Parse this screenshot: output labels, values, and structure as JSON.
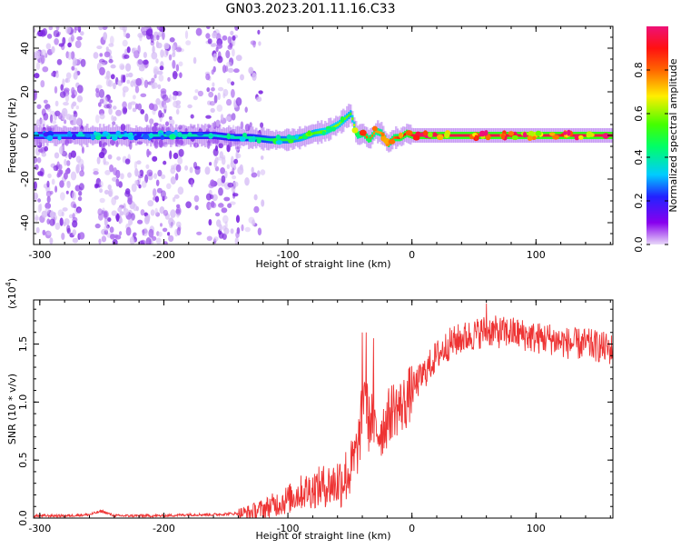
{
  "title": "GN03.2023.201.11.16.C33",
  "chart_data": [
    {
      "type": "heatmap",
      "xlabel": "Height of straight line (km)",
      "ylabel": "Frequency (Hz)",
      "xlim": [
        -305,
        162
      ],
      "ylim": [
        -50,
        50
      ],
      "x_ticks": [
        -300,
        -200,
        -100,
        0,
        100
      ],
      "x_tick_labels": [
        "-300",
        "-200",
        "-100",
        "0",
        "100"
      ],
      "y_ticks": [
        -40,
        -20,
        0,
        20,
        40
      ],
      "y_tick_labels": [
        "-40",
        "-20",
        "0",
        "20",
        "40"
      ],
      "colorbar": {
        "label": "Normalized spectral amplitude",
        "range": [
          0,
          1
        ],
        "ticks": [
          0.0,
          0.2,
          0.4,
          0.6,
          0.8
        ],
        "tick_labels": [
          "0.0",
          "0.2",
          "0.4",
          "0.6",
          "0.8"
        ]
      },
      "ridge": {
        "x": [
          -305,
          -280,
          -260,
          -240,
          -220,
          -200,
          -180,
          -160,
          -145,
          -130,
          -115,
          -100,
          -90,
          -80,
          -70,
          -60,
          -50,
          -45,
          -40,
          -35,
          -30,
          -25,
          -20,
          -15,
          -10,
          -5,
          0,
          20,
          50,
          100,
          162
        ],
        "y": [
          0,
          0,
          0,
          0,
          0,
          0,
          0,
          0,
          -1,
          -1,
          -2,
          -2,
          -1,
          1,
          2,
          5,
          10,
          0,
          1,
          -2,
          2,
          1,
          -4,
          -1,
          -1,
          1,
          0,
          0,
          0,
          0,
          0
        ],
        "amplitude": [
          0.3,
          0.3,
          0.4,
          0.35,
          0.35,
          0.4,
          0.4,
          0.35,
          0.4,
          0.4,
          0.45,
          0.5,
          0.55,
          0.55,
          0.6,
          0.6,
          0.55,
          0.7,
          0.8,
          0.8,
          0.75,
          0.75,
          0.8,
          0.8,
          0.9,
          0.9,
          0.95,
          0.95,
          0.95,
          0.95,
          0.95
        ]
      },
      "noise_bands": [
        {
          "x_range": [
            -305,
            -265
          ],
          "density": 0.9
        },
        {
          "x_range": [
            -255,
            -185
          ],
          "density": 0.85
        },
        {
          "x_range": [
            -182,
            -170
          ],
          "density": 0.3
        },
        {
          "x_range": [
            -165,
            -140
          ],
          "density": 0.95
        },
        {
          "x_range": [
            -140,
            -120
          ],
          "density": 0.3
        }
      ]
    },
    {
      "type": "line",
      "xlabel": "Height of straight line (km)",
      "ylabel": "SNR (10 * v/v)",
      "y_scale_label": "(x10",
      "y_scale_exponent": "4",
      "y_scale_suffix": ")",
      "xlim": [
        -305,
        162
      ],
      "ylim": [
        0,
        1.88
      ],
      "x_ticks": [
        -300,
        -200,
        -100,
        0,
        100
      ],
      "x_tick_labels": [
        "-300",
        "-200",
        "-100",
        "0",
        "100"
      ],
      "y_ticks": [
        0.0,
        0.5,
        1.0,
        1.5
      ],
      "y_tick_labels": [
        "0.0",
        "0.5",
        "1.0",
        "1.5"
      ],
      "color": "#ee3333",
      "series": [
        {
          "x": [
            -305,
            -280,
            -260,
            -250,
            -240,
            -220,
            -200,
            -180,
            -160,
            -140,
            -130,
            -120,
            -110,
            -100,
            -90,
            -80,
            -70,
            -60,
            -50,
            -45,
            -42,
            -40,
            -38,
            -35,
            -32,
            -30,
            -25,
            -20,
            -15,
            -10,
            -5,
            0,
            10,
            20,
            30,
            40,
            50,
            60,
            70,
            80,
            90,
            100,
            110,
            120,
            130,
            140,
            150,
            162
          ],
          "y": [
            0.02,
            0.02,
            0.03,
            0.06,
            0.02,
            0.02,
            0.02,
            0.03,
            0.03,
            0.04,
            0.05,
            0.08,
            0.12,
            0.16,
            0.22,
            0.25,
            0.28,
            0.3,
            0.4,
            0.55,
            0.7,
            0.95,
            1.2,
            0.8,
            0.9,
            0.75,
            0.75,
            0.85,
            0.95,
            0.95,
            1.0,
            1.1,
            1.25,
            1.4,
            1.5,
            1.55,
            1.58,
            1.62,
            1.6,
            1.6,
            1.58,
            1.55,
            1.55,
            1.52,
            1.5,
            1.5,
            1.48,
            1.45
          ],
          "spikes": [
            {
              "x": -40,
              "y": 1.6
            },
            {
              "x": -37,
              "y": 1.6
            },
            {
              "x": -31,
              "y": 1.55
            },
            {
              "x": 60,
              "y": 1.85
            }
          ]
        }
      ]
    }
  ]
}
